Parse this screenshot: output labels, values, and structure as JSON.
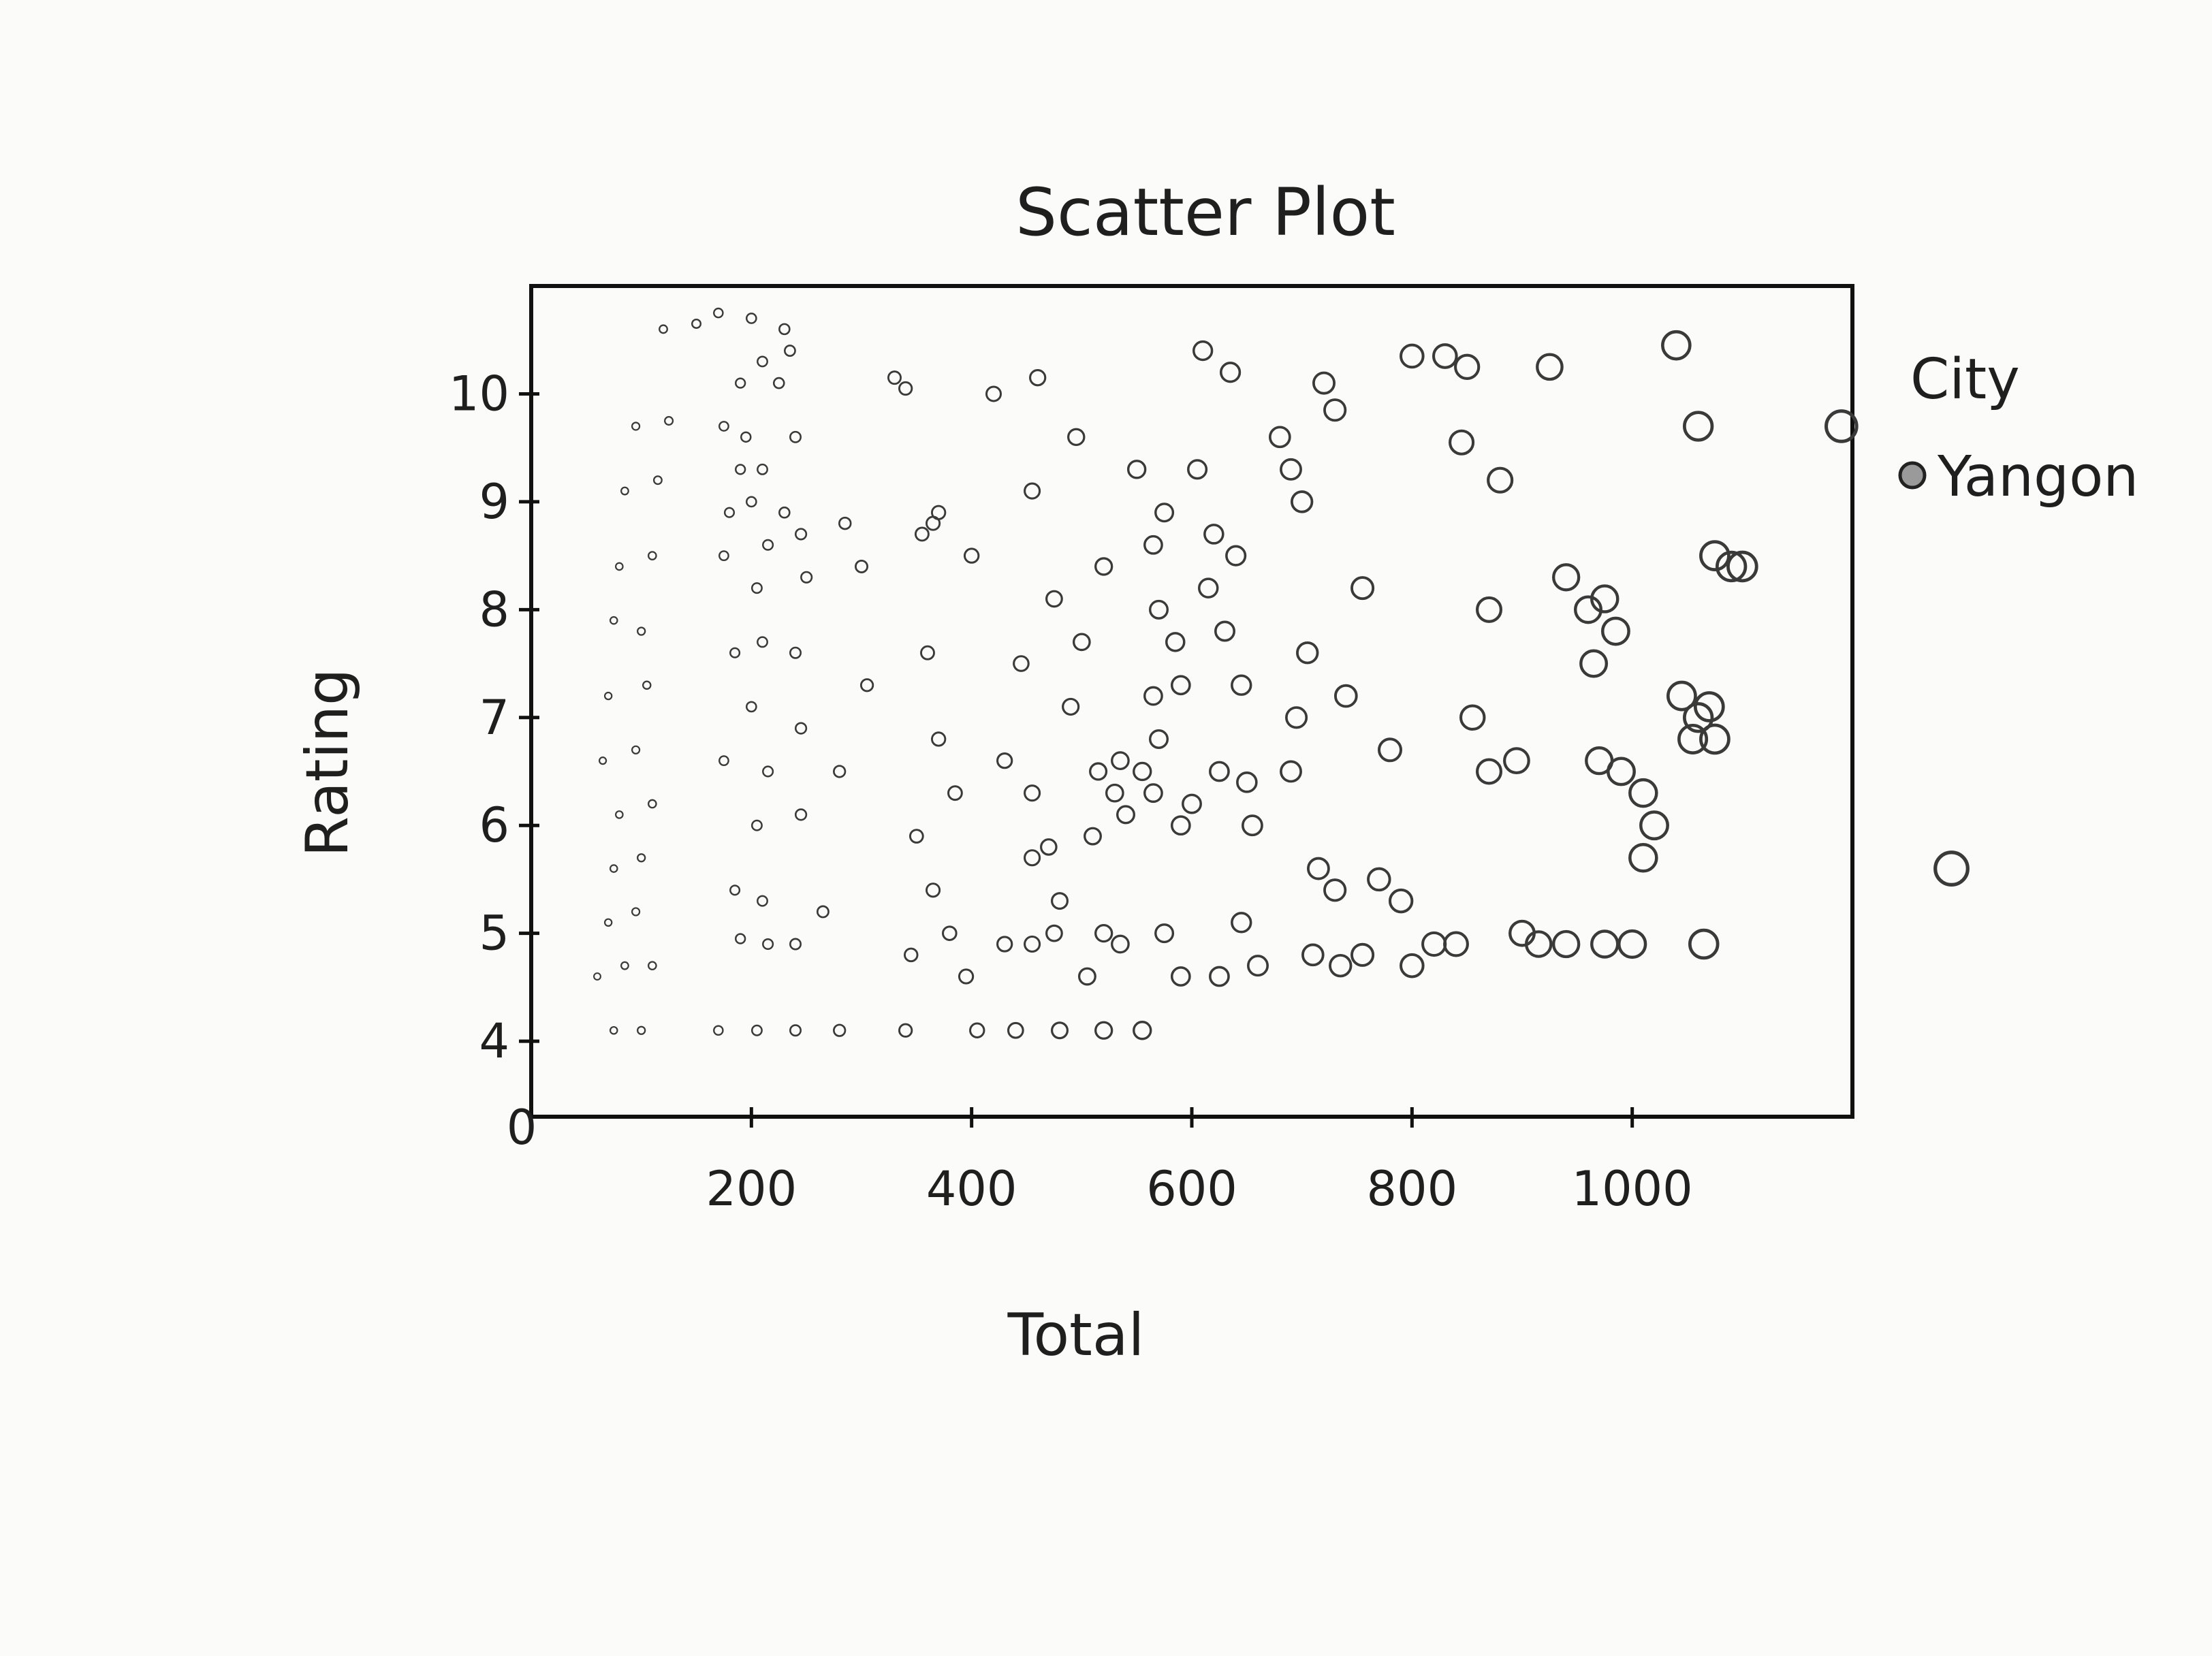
{
  "chart_data": {
    "type": "scatter",
    "title": "Scatter Plot",
    "xlabel": "Total",
    "ylabel": "Rating",
    "xlim": [
      0,
      1200
    ],
    "ylim": [
      3.3,
      11.0
    ],
    "x_ticks": [
      {
        "value": 0,
        "label": "0"
      },
      {
        "value": 200,
        "label": "200"
      },
      {
        "value": 400,
        "label": "400"
      },
      {
        "value": 600,
        "label": "600"
      },
      {
        "value": 800,
        "label": "800"
      },
      {
        "value": 1000,
        "label": "1000"
      }
    ],
    "y_ticks": [
      {
        "value": 4,
        "label": "4"
      },
      {
        "value": 5,
        "label": "5"
      },
      {
        "value": 6,
        "label": "6"
      },
      {
        "value": 7,
        "label": "7"
      },
      {
        "value": 8,
        "label": "8"
      },
      {
        "value": 9,
        "label": "9"
      },
      {
        "value": 10,
        "label": "10"
      }
    ],
    "grid": false,
    "legend": {
      "title": "City",
      "position": "right",
      "entries": [
        "Yangon"
      ]
    },
    "series": [
      {
        "name": "Yangon",
        "points": [
          [
            120,
            10.6
          ],
          [
            150,
            10.65
          ],
          [
            95,
            9.7
          ],
          [
            125,
            9.75
          ],
          [
            85,
            9.1
          ],
          [
            115,
            9.2
          ],
          [
            80,
            8.4
          ],
          [
            110,
            8.5
          ],
          [
            75,
            7.9
          ],
          [
            100,
            7.8
          ],
          [
            70,
            7.2
          ],
          [
            105,
            7.3
          ],
          [
            65,
            6.6
          ],
          [
            95,
            6.7
          ],
          [
            80,
            6.1
          ],
          [
            110,
            6.2
          ],
          [
            75,
            5.6
          ],
          [
            100,
            5.7
          ],
          [
            70,
            5.1
          ],
          [
            95,
            5.2
          ],
          [
            60,
            4.6
          ],
          [
            85,
            4.7
          ],
          [
            110,
            4.7
          ],
          [
            75,
            4.1
          ],
          [
            100,
            4.1
          ],
          [
            170,
            10.75
          ],
          [
            200,
            10.7
          ],
          [
            230,
            10.6
          ],
          [
            210,
            10.3
          ],
          [
            190,
            10.1
          ],
          [
            175,
            9.7
          ],
          [
            195,
            9.6
          ],
          [
            190,
            9.3
          ],
          [
            210,
            9.3
          ],
          [
            180,
            8.9
          ],
          [
            200,
            9.0
          ],
          [
            175,
            8.5
          ],
          [
            215,
            8.6
          ],
          [
            205,
            8.2
          ],
          [
            185,
            7.6
          ],
          [
            210,
            7.7
          ],
          [
            200,
            7.1
          ],
          [
            175,
            6.6
          ],
          [
            215,
            6.5
          ],
          [
            205,
            6.0
          ],
          [
            185,
            5.4
          ],
          [
            210,
            5.3
          ],
          [
            190,
            4.95
          ],
          [
            215,
            4.9
          ],
          [
            170,
            4.1
          ],
          [
            205,
            4.1
          ],
          [
            235,
            10.4
          ],
          [
            225,
            10.1
          ],
          [
            240,
            9.6
          ],
          [
            230,
            8.9
          ],
          [
            245,
            8.7
          ],
          [
            250,
            8.3
          ],
          [
            240,
            7.6
          ],
          [
            245,
            6.9
          ],
          [
            245,
            6.1
          ],
          [
            240,
            4.9
          ],
          [
            240,
            4.1
          ],
          [
            285,
            8.8
          ],
          [
            300,
            8.4
          ],
          [
            305,
            7.3
          ],
          [
            280,
            6.5
          ],
          [
            265,
            5.2
          ],
          [
            280,
            4.1
          ],
          [
            330,
            10.15
          ],
          [
            340,
            10.05
          ],
          [
            365,
            8.8
          ],
          [
            355,
            8.7
          ],
          [
            370,
            8.9
          ],
          [
            400,
            8.5
          ],
          [
            360,
            7.6
          ],
          [
            370,
            6.8
          ],
          [
            385,
            6.3
          ],
          [
            350,
            5.9
          ],
          [
            365,
            5.4
          ],
          [
            345,
            4.8
          ],
          [
            380,
            5.0
          ],
          [
            395,
            4.6
          ],
          [
            340,
            4.1
          ],
          [
            420,
            10.0
          ],
          [
            460,
            10.15
          ],
          [
            455,
            9.1
          ],
          [
            475,
            8.1
          ],
          [
            445,
            7.5
          ],
          [
            430,
            6.6
          ],
          [
            455,
            6.3
          ],
          [
            470,
            5.8
          ],
          [
            455,
            5.7
          ],
          [
            480,
            5.3
          ],
          [
            430,
            4.9
          ],
          [
            455,
            4.9
          ],
          [
            475,
            5.0
          ],
          [
            405,
            4.1
          ],
          [
            440,
            4.1
          ],
          [
            495,
            9.6
          ],
          [
            520,
            8.4
          ],
          [
            500,
            7.7
          ],
          [
            490,
            7.1
          ],
          [
            515,
            6.5
          ],
          [
            535,
            6.6
          ],
          [
            530,
            6.3
          ],
          [
            555,
            6.5
          ],
          [
            510,
            5.9
          ],
          [
            540,
            6.1
          ],
          [
            520,
            5.0
          ],
          [
            505,
            4.6
          ],
          [
            535,
            4.9
          ],
          [
            480,
            4.1
          ],
          [
            520,
            4.1
          ],
          [
            550,
            9.3
          ],
          [
            565,
            8.6
          ],
          [
            575,
            8.9
          ],
          [
            570,
            8.0
          ],
          [
            585,
            7.7
          ],
          [
            565,
            7.2
          ],
          [
            590,
            7.3
          ],
          [
            570,
            6.8
          ],
          [
            565,
            6.3
          ],
          [
            590,
            6.0
          ],
          [
            600,
            6.2
          ],
          [
            575,
            5.0
          ],
          [
            590,
            4.6
          ],
          [
            555,
            4.1
          ],
          [
            610,
            10.4
          ],
          [
            635,
            10.2
          ],
          [
            605,
            9.3
          ],
          [
            620,
            8.7
          ],
          [
            615,
            8.2
          ],
          [
            640,
            8.5
          ],
          [
            630,
            7.8
          ],
          [
            645,
            7.3
          ],
          [
            625,
            6.5
          ],
          [
            650,
            6.4
          ],
          [
            655,
            6.0
          ],
          [
            645,
            5.1
          ],
          [
            625,
            4.6
          ],
          [
            660,
            4.7
          ],
          [
            680,
            9.6
          ],
          [
            690,
            9.3
          ],
          [
            700,
            9.0
          ],
          [
            705,
            7.6
          ],
          [
            695,
            7.0
          ],
          [
            690,
            6.5
          ],
          [
            715,
            5.6
          ],
          [
            730,
            5.4
          ],
          [
            710,
            4.8
          ],
          [
            735,
            4.7
          ],
          [
            755,
            4.8
          ],
          [
            720,
            10.1
          ],
          [
            730,
            9.85
          ],
          [
            755,
            8.2
          ],
          [
            740,
            7.2
          ],
          [
            780,
            6.7
          ],
          [
            770,
            5.5
          ],
          [
            790,
            5.3
          ],
          [
            800,
            4.7
          ],
          [
            820,
            4.9
          ],
          [
            840,
            4.9
          ],
          [
            800,
            10.35
          ],
          [
            830,
            10.35
          ],
          [
            850,
            10.25
          ],
          [
            845,
            9.55
          ],
          [
            880,
            9.2
          ],
          [
            870,
            8.0
          ],
          [
            855,
            7.0
          ],
          [
            870,
            6.5
          ],
          [
            895,
            6.6
          ],
          [
            900,
            5.0
          ],
          [
            915,
            4.9
          ],
          [
            940,
            4.9
          ],
          [
            925,
            10.25
          ],
          [
            940,
            8.3
          ],
          [
            960,
            8.0
          ],
          [
            975,
            8.1
          ],
          [
            985,
            7.8
          ],
          [
            965,
            7.5
          ],
          [
            970,
            6.6
          ],
          [
            990,
            6.5
          ],
          [
            1010,
            6.3
          ],
          [
            1020,
            6.0
          ],
          [
            1010,
            5.7
          ],
          [
            975,
            4.9
          ],
          [
            1000,
            4.9
          ],
          [
            1040,
            10.45
          ],
          [
            1060,
            9.7
          ],
          [
            1075,
            8.5
          ],
          [
            1090,
            8.4
          ],
          [
            1100,
            8.4
          ],
          [
            1045,
            7.2
          ],
          [
            1060,
            7.0
          ],
          [
            1070,
            7.1
          ],
          [
            1055,
            6.8
          ],
          [
            1075,
            6.8
          ],
          [
            1065,
            4.9
          ],
          [
            1190,
            9.7
          ],
          [
            1290,
            5.6
          ]
        ]
      }
    ]
  }
}
